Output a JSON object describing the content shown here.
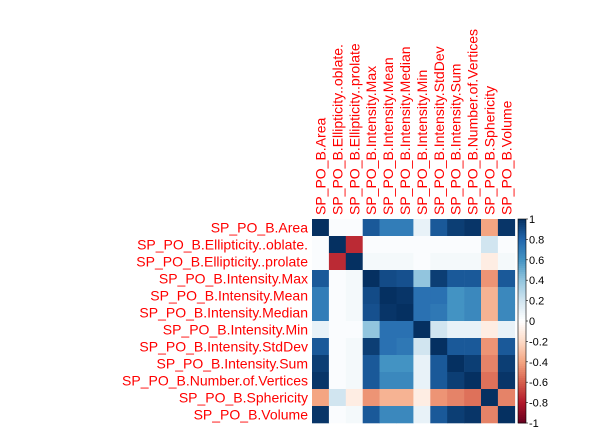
{
  "chart_data": {
    "type": "heatmap",
    "title": "",
    "variables": [
      "SP_PO_B.Area",
      "SP_PO_B.Ellipticity..oblate.",
      "SP_PO_B.Ellipticity..prolate",
      "SP_PO_B.Intensity.Max",
      "SP_PO_B.Intensity.Mean",
      "SP_PO_B.Intensity.Median",
      "SP_PO_B.Intensity.Min",
      "SP_PO_B.Intensity.StdDev",
      "SP_PO_B.Intensity.Sum",
      "SP_PO_B.Number.of.Vertices",
      "SP_PO_B.Sphericity",
      "SP_PO_B.Volume"
    ],
    "matrix": [
      [
        1.0,
        0.02,
        0.02,
        0.85,
        0.7,
        0.7,
        0.1,
        0.85,
        0.95,
        0.98,
        -0.4,
        0.98
      ],
      [
        0.02,
        1.0,
        -0.75,
        0.02,
        0.02,
        0.02,
        0.02,
        0.02,
        0.02,
        0.02,
        0.2,
        0.02
      ],
      [
        0.02,
        -0.75,
        1.0,
        0.05,
        0.05,
        0.05,
        0.02,
        0.05,
        0.05,
        0.05,
        -0.1,
        0.05
      ],
      [
        0.85,
        0.02,
        0.05,
        1.0,
        0.9,
        0.88,
        0.4,
        0.95,
        0.85,
        0.85,
        -0.45,
        0.85
      ],
      [
        0.7,
        0.02,
        0.05,
        0.9,
        1.0,
        0.98,
        0.75,
        0.75,
        0.6,
        0.65,
        -0.35,
        0.65
      ],
      [
        0.7,
        0.02,
        0.05,
        0.88,
        0.98,
        1.0,
        0.75,
        0.72,
        0.6,
        0.65,
        -0.35,
        0.65
      ],
      [
        0.1,
        0.02,
        0.02,
        0.4,
        0.75,
        0.75,
        1.0,
        0.2,
        0.1,
        0.1,
        -0.1,
        0.1
      ],
      [
        0.85,
        0.02,
        0.05,
        0.95,
        0.75,
        0.72,
        0.2,
        1.0,
        0.85,
        0.85,
        -0.45,
        0.85
      ],
      [
        0.95,
        0.02,
        0.05,
        0.85,
        0.6,
        0.6,
        0.1,
        0.85,
        1.0,
        0.95,
        -0.5,
        0.95
      ],
      [
        0.98,
        0.02,
        0.05,
        0.85,
        0.65,
        0.65,
        0.1,
        0.85,
        0.95,
        1.0,
        -0.55,
        0.98
      ],
      [
        -0.4,
        0.2,
        -0.1,
        -0.45,
        -0.35,
        -0.35,
        -0.1,
        -0.45,
        -0.5,
        -0.55,
        1.0,
        -0.5
      ],
      [
        0.98,
        0.02,
        0.05,
        0.85,
        0.65,
        0.65,
        0.1,
        0.85,
        0.95,
        0.98,
        -0.5,
        1.0
      ]
    ],
    "colorbar": {
      "range": [
        -1,
        1
      ],
      "ticks": [
        "1",
        "0.8",
        "0.6",
        "0.4",
        "0.2",
        "0",
        "-0.2",
        "-0.4",
        "-0.6",
        "-0.8",
        "-1"
      ],
      "colors": [
        "#67001F",
        "#B2182B",
        "#D6604D",
        "#F4A582",
        "#FDDBC7",
        "#FFFFFF",
        "#D1E5F0",
        "#92C5DE",
        "#4393C3",
        "#2166AC",
        "#053061"
      ]
    },
    "label_color": "#FF0000",
    "tick_label_color": "#000000",
    "grid": false,
    "legend_placement": "right"
  }
}
